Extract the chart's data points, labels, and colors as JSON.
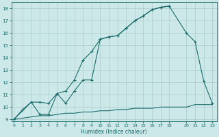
{
  "xlabel": "Humidex (Indice chaleur)",
  "bg_color": "#cce8e8",
  "grid_color": "#aacccc",
  "line_color": "#1a6b6b",
  "line1_x": [
    0,
    1,
    2,
    3,
    4,
    5,
    6,
    7,
    8,
    9,
    10,
    11,
    12,
    13,
    14,
    15,
    16,
    17,
    18
  ],
  "line1_y": [
    9.0,
    9.8,
    10.4,
    10.4,
    10.3,
    11.1,
    11.3,
    12.2,
    13.8,
    14.5,
    15.5,
    15.7,
    15.8,
    16.4,
    17.0,
    17.4,
    17.9,
    18.1,
    18.2
  ],
  "line2_x": [
    0,
    2,
    3,
    4,
    5,
    6,
    7,
    8,
    9,
    10,
    11,
    12,
    13,
    14,
    15,
    16,
    17,
    18,
    20,
    21,
    22,
    23
  ],
  "line2_y": [
    9.0,
    10.4,
    9.4,
    9.4,
    11.1,
    10.3,
    11.3,
    12.2,
    12.2,
    15.5,
    15.7,
    15.8,
    16.4,
    17.0,
    17.4,
    17.9,
    18.1,
    18.2,
    16.0,
    15.3,
    12.1,
    10.3
  ],
  "line3_x": [
    0,
    1,
    2,
    3,
    4,
    5,
    6,
    7,
    8,
    9,
    10,
    11,
    12,
    13,
    14,
    15,
    16,
    17,
    18,
    19,
    20,
    21,
    22,
    23
  ],
  "line3_y": [
    9.0,
    9.1,
    9.2,
    9.3,
    9.3,
    9.4,
    9.5,
    9.5,
    9.6,
    9.6,
    9.7,
    9.7,
    9.8,
    9.8,
    9.9,
    9.9,
    9.9,
    10.0,
    10.0,
    10.0,
    10.0,
    10.2,
    10.2,
    10.2
  ],
  "xlim": [
    -0.3,
    23.5
  ],
  "ylim": [
    8.85,
    18.5
  ],
  "yticks": [
    9,
    10,
    11,
    12,
    13,
    14,
    15,
    16,
    17,
    18
  ],
  "xticks": [
    0,
    1,
    2,
    3,
    4,
    5,
    6,
    7,
    8,
    9,
    10,
    11,
    12,
    13,
    14,
    15,
    16,
    17,
    18,
    20,
    21,
    22,
    23
  ]
}
